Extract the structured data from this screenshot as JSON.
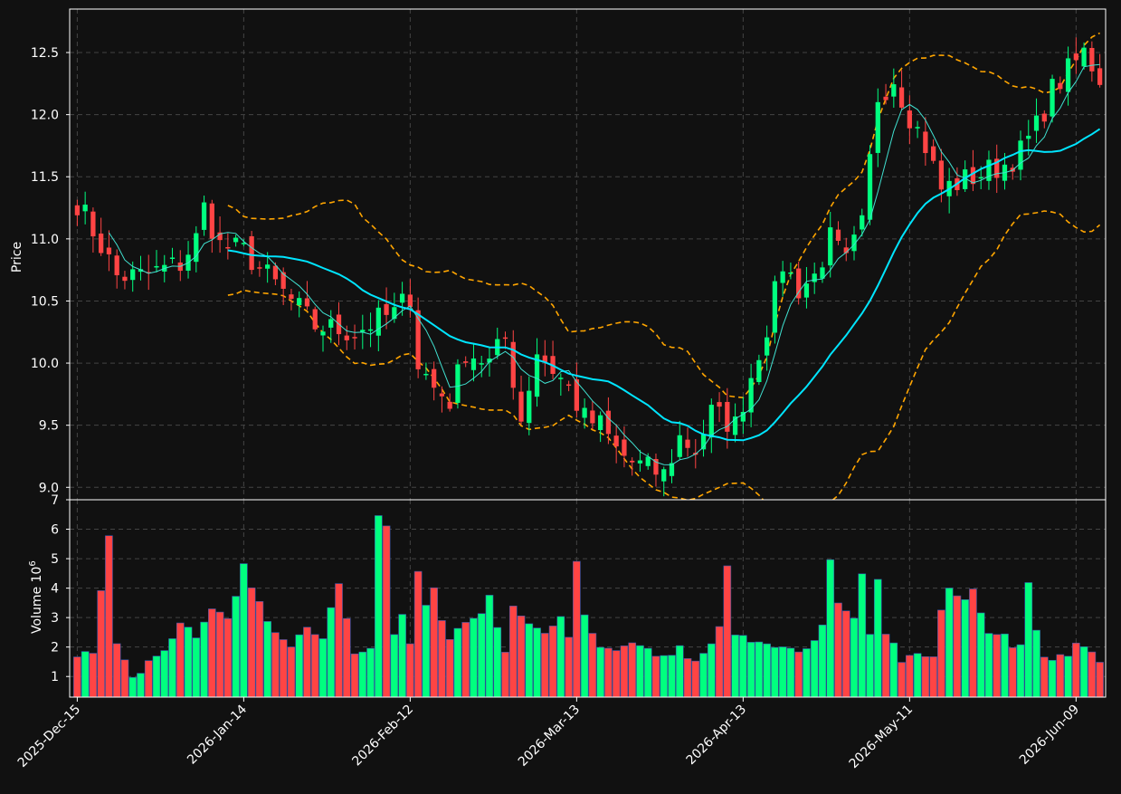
{
  "colors": {
    "background": "#111111",
    "up": "#00ff7f",
    "down": "#ff4444",
    "ma_fast": "#40e0d0",
    "ma_slow": "#00e5ff",
    "bollinger": "#ffa500",
    "grid": "#444444",
    "axes": "#ffffff"
  },
  "chart_data": {
    "type": "candlestick",
    "ylabel": "Price",
    "volume_ylabel": "Volume  10",
    "volume_exponent": "6",
    "price_ylim": [
      8.9,
      12.85
    ],
    "volume_ylim": [
      0.3,
      7
    ],
    "price_ticks": [
      9.0,
      9.5,
      10.0,
      10.5,
      11.0,
      11.5,
      12.0,
      12.5
    ],
    "volume_ticks": [
      1,
      2,
      3,
      4,
      5,
      6,
      7
    ],
    "x_tick_labels": [
      {
        "i": 0,
        "label": "2025-Dec-15"
      },
      {
        "i": 21,
        "label": "2026-Jan-14"
      },
      {
        "i": 42,
        "label": "2026-Feb-12"
      },
      {
        "i": 63,
        "label": "2026-Mar-13"
      },
      {
        "i": 84,
        "label": "2026-Apr-13"
      },
      {
        "i": 105,
        "label": "2026-May-11"
      },
      {
        "i": 126,
        "label": "2026-Jun-09"
      }
    ],
    "grid": true,
    "start_date": "2025-12-15",
    "end_date": "2026-06-12",
    "ma_fast_period": 5,
    "ma_slow_period": 20,
    "bollinger_period": 20,
    "bollinger_std": 2,
    "price_keypoints": [
      [
        0,
        11.3
      ],
      [
        3,
        10.95
      ],
      [
        5,
        10.7
      ],
      [
        8,
        10.7
      ],
      [
        13,
        10.8
      ],
      [
        15,
        11.0
      ],
      [
        16,
        11.25
      ],
      [
        18,
        10.95
      ],
      [
        21,
        10.9
      ],
      [
        24,
        10.7
      ],
      [
        27,
        10.5
      ],
      [
        30,
        10.3
      ],
      [
        35,
        10.25
      ],
      [
        38,
        10.35
      ],
      [
        40,
        10.4
      ],
      [
        42,
        10.55
      ],
      [
        43,
        10.0
      ],
      [
        45,
        9.8
      ],
      [
        47,
        9.7
      ],
      [
        49,
        10.1
      ],
      [
        52,
        10.0
      ],
      [
        54,
        10.2
      ],
      [
        56,
        9.55
      ],
      [
        58,
        10.1
      ],
      [
        60,
        9.95
      ],
      [
        62,
        9.8
      ],
      [
        64,
        9.55
      ],
      [
        66,
        9.5
      ],
      [
        68,
        9.3
      ],
      [
        70,
        9.2
      ],
      [
        72,
        9.15
      ],
      [
        74,
        9.1
      ],
      [
        76,
        9.4
      ],
      [
        78,
        9.3
      ],
      [
        80,
        9.6
      ],
      [
        83,
        9.5
      ],
      [
        85,
        9.9
      ],
      [
        87,
        10.3
      ],
      [
        89,
        10.8
      ],
      [
        91,
        10.6
      ],
      [
        93,
        10.7
      ],
      [
        95,
        11.0
      ],
      [
        97,
        10.8
      ],
      [
        99,
        11.1
      ],
      [
        101,
        12.15
      ],
      [
        103,
        12.3
      ],
      [
        105,
        12.0
      ],
      [
        107,
        11.75
      ],
      [
        109,
        11.4
      ],
      [
        111,
        11.45
      ],
      [
        113,
        11.5
      ],
      [
        115,
        11.55
      ],
      [
        117,
        11.6
      ],
      [
        119,
        11.7
      ],
      [
        121,
        11.9
      ],
      [
        123,
        12.2
      ],
      [
        125,
        12.35
      ],
      [
        127,
        12.5
      ],
      [
        129,
        12.3
      ]
    ],
    "volume_keypoints": [
      [
        0,
        1.8
      ],
      [
        2,
        1.9
      ],
      [
        4,
        5.7
      ],
      [
        5,
        2.0
      ],
      [
        7,
        0.9
      ],
      [
        9,
        1.5
      ],
      [
        11,
        1.8
      ],
      [
        13,
        2.8
      ],
      [
        15,
        2.4
      ],
      [
        17,
        3.2
      ],
      [
        19,
        2.9
      ],
      [
        21,
        4.8
      ],
      [
        23,
        3.4
      ],
      [
        25,
        2.4
      ],
      [
        27,
        2.1
      ],
      [
        29,
        2.7
      ],
      [
        31,
        2.2
      ],
      [
        33,
        4.2
      ],
      [
        35,
        1.7
      ],
      [
        37,
        2.0
      ],
      [
        38,
        6.4
      ],
      [
        39,
        6.2
      ],
      [
        40,
        2.3
      ],
      [
        41,
        3.1
      ],
      [
        42,
        2.0
      ],
      [
        43,
        4.6
      ],
      [
        44,
        3.3
      ],
      [
        45,
        3.9
      ],
      [
        47,
        2.2
      ],
      [
        49,
        2.8
      ],
      [
        51,
        3.0
      ],
      [
        52,
        3.7
      ],
      [
        54,
        1.9
      ],
      [
        55,
        3.3
      ],
      [
        57,
        2.7
      ],
      [
        59,
        2.4
      ],
      [
        61,
        2.9
      ],
      [
        62,
        2.2
      ],
      [
        63,
        5.0
      ],
      [
        64,
        3.2
      ],
      [
        66,
        2.0
      ],
      [
        68,
        1.8
      ],
      [
        70,
        2.1
      ],
      [
        72,
        2.0
      ],
      [
        74,
        1.6
      ],
      [
        76,
        1.9
      ],
      [
        78,
        1.6
      ],
      [
        80,
        2.0
      ],
      [
        81,
        2.6
      ],
      [
        82,
        4.7
      ],
      [
        83,
        2.3
      ],
      [
        85,
        2.3
      ],
      [
        87,
        2.0
      ],
      [
        89,
        2.0
      ],
      [
        91,
        1.8
      ],
      [
        93,
        2.2
      ],
      [
        94,
        2.8
      ],
      [
        95,
        5.0
      ],
      [
        96,
        3.6
      ],
      [
        98,
        3.1
      ],
      [
        99,
        4.6
      ],
      [
        100,
        2.4
      ],
      [
        101,
        4.3
      ],
      [
        102,
        2.4
      ],
      [
        104,
        1.6
      ],
      [
        106,
        1.7
      ],
      [
        108,
        1.6
      ],
      [
        109,
        3.2
      ],
      [
        110,
        3.9
      ],
      [
        112,
        3.5
      ],
      [
        113,
        3.9
      ],
      [
        115,
        2.6
      ],
      [
        117,
        2.5
      ],
      [
        118,
        2.0
      ],
      [
        119,
        2.1
      ],
      [
        120,
        4.2
      ],
      [
        121,
        2.6
      ],
      [
        122,
        1.8
      ],
      [
        123,
        1.5
      ],
      [
        126,
        2.0
      ],
      [
        129,
        1.6
      ]
    ]
  }
}
